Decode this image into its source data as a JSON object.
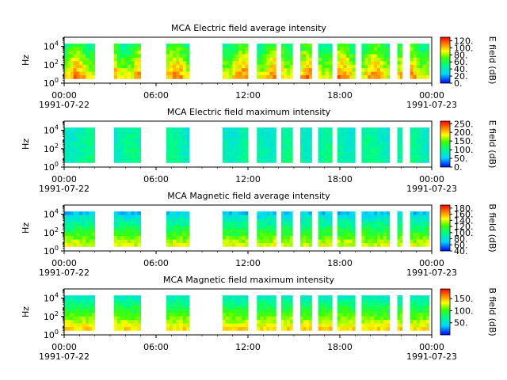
{
  "chart_data": [
    {
      "type": "heatmap",
      "title": "MCA  Electric field average intensity",
      "ylabel": "Hz",
      "ylim": [
        1,
        100000
      ],
      "yscale": "log",
      "yticks": [
        {
          "exp": "0"
        },
        {
          "exp": "2"
        },
        {
          "exp": "4"
        }
      ],
      "xlim": [
        "1991-07-22 00:00",
        "1991-07-23 00:00"
      ],
      "xticks": [
        "00:00",
        "06:00",
        "12:00",
        "18:00",
        "00:00"
      ],
      "xdates": [
        "1991-07-22",
        "1991-07-23"
      ],
      "colorbar": {
        "label": "E field (dB)",
        "range": [
          0,
          130
        ],
        "ticks": [
          "0.",
          "20.",
          "40.",
          "60.",
          "80.",
          "100.",
          "120."
        ]
      },
      "profile": "efield",
      "freq_range": [
        3,
        20000
      ],
      "data_intervals": [
        [
          "00:00",
          "02:00"
        ],
        [
          "03:15",
          "05:00"
        ],
        [
          "06:40",
          "08:10"
        ],
        [
          "10:20",
          "12:00"
        ],
        [
          "12:35",
          "13:50"
        ],
        [
          "14:10",
          "14:55"
        ],
        [
          "15:25",
          "16:10"
        ],
        [
          "16:35",
          "17:30"
        ],
        [
          "17:50",
          "19:00"
        ],
        [
          "19:25",
          "21:15"
        ],
        [
          "21:45",
          "22:05"
        ],
        [
          "22:35",
          "23:50"
        ]
      ]
    },
    {
      "type": "heatmap",
      "title": "MCA  Electric field maximum intensity",
      "ylabel": "Hz",
      "ylim": [
        1,
        100000
      ],
      "yscale": "log",
      "yticks": [
        {
          "exp": "0"
        },
        {
          "exp": "2"
        },
        {
          "exp": "4"
        }
      ],
      "xlim": [
        "1991-07-22 00:00",
        "1991-07-23 00:00"
      ],
      "xticks": [
        "00:00",
        "06:00",
        "12:00",
        "18:00",
        "00:00"
      ],
      "xdates": [
        "1991-07-22",
        "1991-07-23"
      ],
      "colorbar": {
        "label": "E field (dB)",
        "range": [
          0,
          265
        ],
        "ticks": [
          "0.",
          "50.",
          "100.",
          "150.",
          "200.",
          "250."
        ]
      },
      "profile": "emax",
      "freq_range": [
        3,
        20000
      ],
      "data_intervals": [
        [
          "00:00",
          "02:00"
        ],
        [
          "03:15",
          "05:00"
        ],
        [
          "06:40",
          "08:10"
        ],
        [
          "10:20",
          "12:00"
        ],
        [
          "12:35",
          "13:50"
        ],
        [
          "14:10",
          "14:55"
        ],
        [
          "15:25",
          "16:10"
        ],
        [
          "16:35",
          "17:30"
        ],
        [
          "17:50",
          "19:00"
        ],
        [
          "19:25",
          "21:15"
        ],
        [
          "21:45",
          "22:05"
        ],
        [
          "22:35",
          "23:50"
        ]
      ]
    },
    {
      "type": "heatmap",
      "title": "MCA  Magnetic field average intensity",
      "ylabel": "Hz",
      "ylim": [
        1,
        100000
      ],
      "yscale": "log",
      "yticks": [
        {
          "exp": "0"
        },
        {
          "exp": "2"
        },
        {
          "exp": "4"
        }
      ],
      "xlim": [
        "1991-07-22 00:00",
        "1991-07-23 00:00"
      ],
      "xticks": [
        "00:00",
        "06:00",
        "12:00",
        "18:00",
        "00:00"
      ],
      "xdates": [
        "1991-07-22",
        "1991-07-23"
      ],
      "colorbar": {
        "label": "B field (dB)",
        "range": [
          40,
          190
        ],
        "ticks": [
          "40.",
          "60.",
          "80.",
          "100.",
          "120.",
          "140.",
          "160.",
          "180."
        ]
      },
      "profile": "bavg",
      "freq_range": [
        3,
        20000
      ],
      "data_intervals": [
        [
          "00:00",
          "02:00"
        ],
        [
          "03:15",
          "05:00"
        ],
        [
          "06:40",
          "08:10"
        ],
        [
          "10:20",
          "12:00"
        ],
        [
          "12:35",
          "13:50"
        ],
        [
          "14:10",
          "14:55"
        ],
        [
          "15:25",
          "16:10"
        ],
        [
          "16:35",
          "17:30"
        ],
        [
          "17:50",
          "19:00"
        ],
        [
          "19:25",
          "21:15"
        ],
        [
          "21:45",
          "22:05"
        ],
        [
          "22:35",
          "23:50"
        ]
      ]
    },
    {
      "type": "heatmap",
      "title": "MCA  Magnetic field maximum intensity",
      "ylabel": "Hz",
      "ylim": [
        1,
        100000
      ],
      "yscale": "log",
      "yticks": [
        {
          "exp": "0"
        },
        {
          "exp": "2"
        },
        {
          "exp": "4"
        }
      ],
      "xlim": [
        "1991-07-22 00:00",
        "1991-07-23 00:00"
      ],
      "xticks": [
        "00:00",
        "06:00",
        "12:00",
        "18:00",
        "00:00"
      ],
      "xdates": [
        "1991-07-22",
        "1991-07-23"
      ],
      "colorbar": {
        "label": "B field (dB)",
        "range": [
          0,
          190
        ],
        "ticks": [
          "50.",
          "100.",
          "150."
        ]
      },
      "profile": "bmax",
      "freq_range": [
        3,
        20000
      ],
      "data_intervals": [
        [
          "00:00",
          "02:00"
        ],
        [
          "03:15",
          "05:00"
        ],
        [
          "06:40",
          "08:10"
        ],
        [
          "10:20",
          "12:00"
        ],
        [
          "12:35",
          "13:50"
        ],
        [
          "14:10",
          "14:55"
        ],
        [
          "15:25",
          "16:10"
        ],
        [
          "16:35",
          "17:30"
        ],
        [
          "17:50",
          "19:00"
        ],
        [
          "19:25",
          "21:15"
        ],
        [
          "21:45",
          "22:05"
        ],
        [
          "22:35",
          "23:50"
        ]
      ]
    }
  ]
}
